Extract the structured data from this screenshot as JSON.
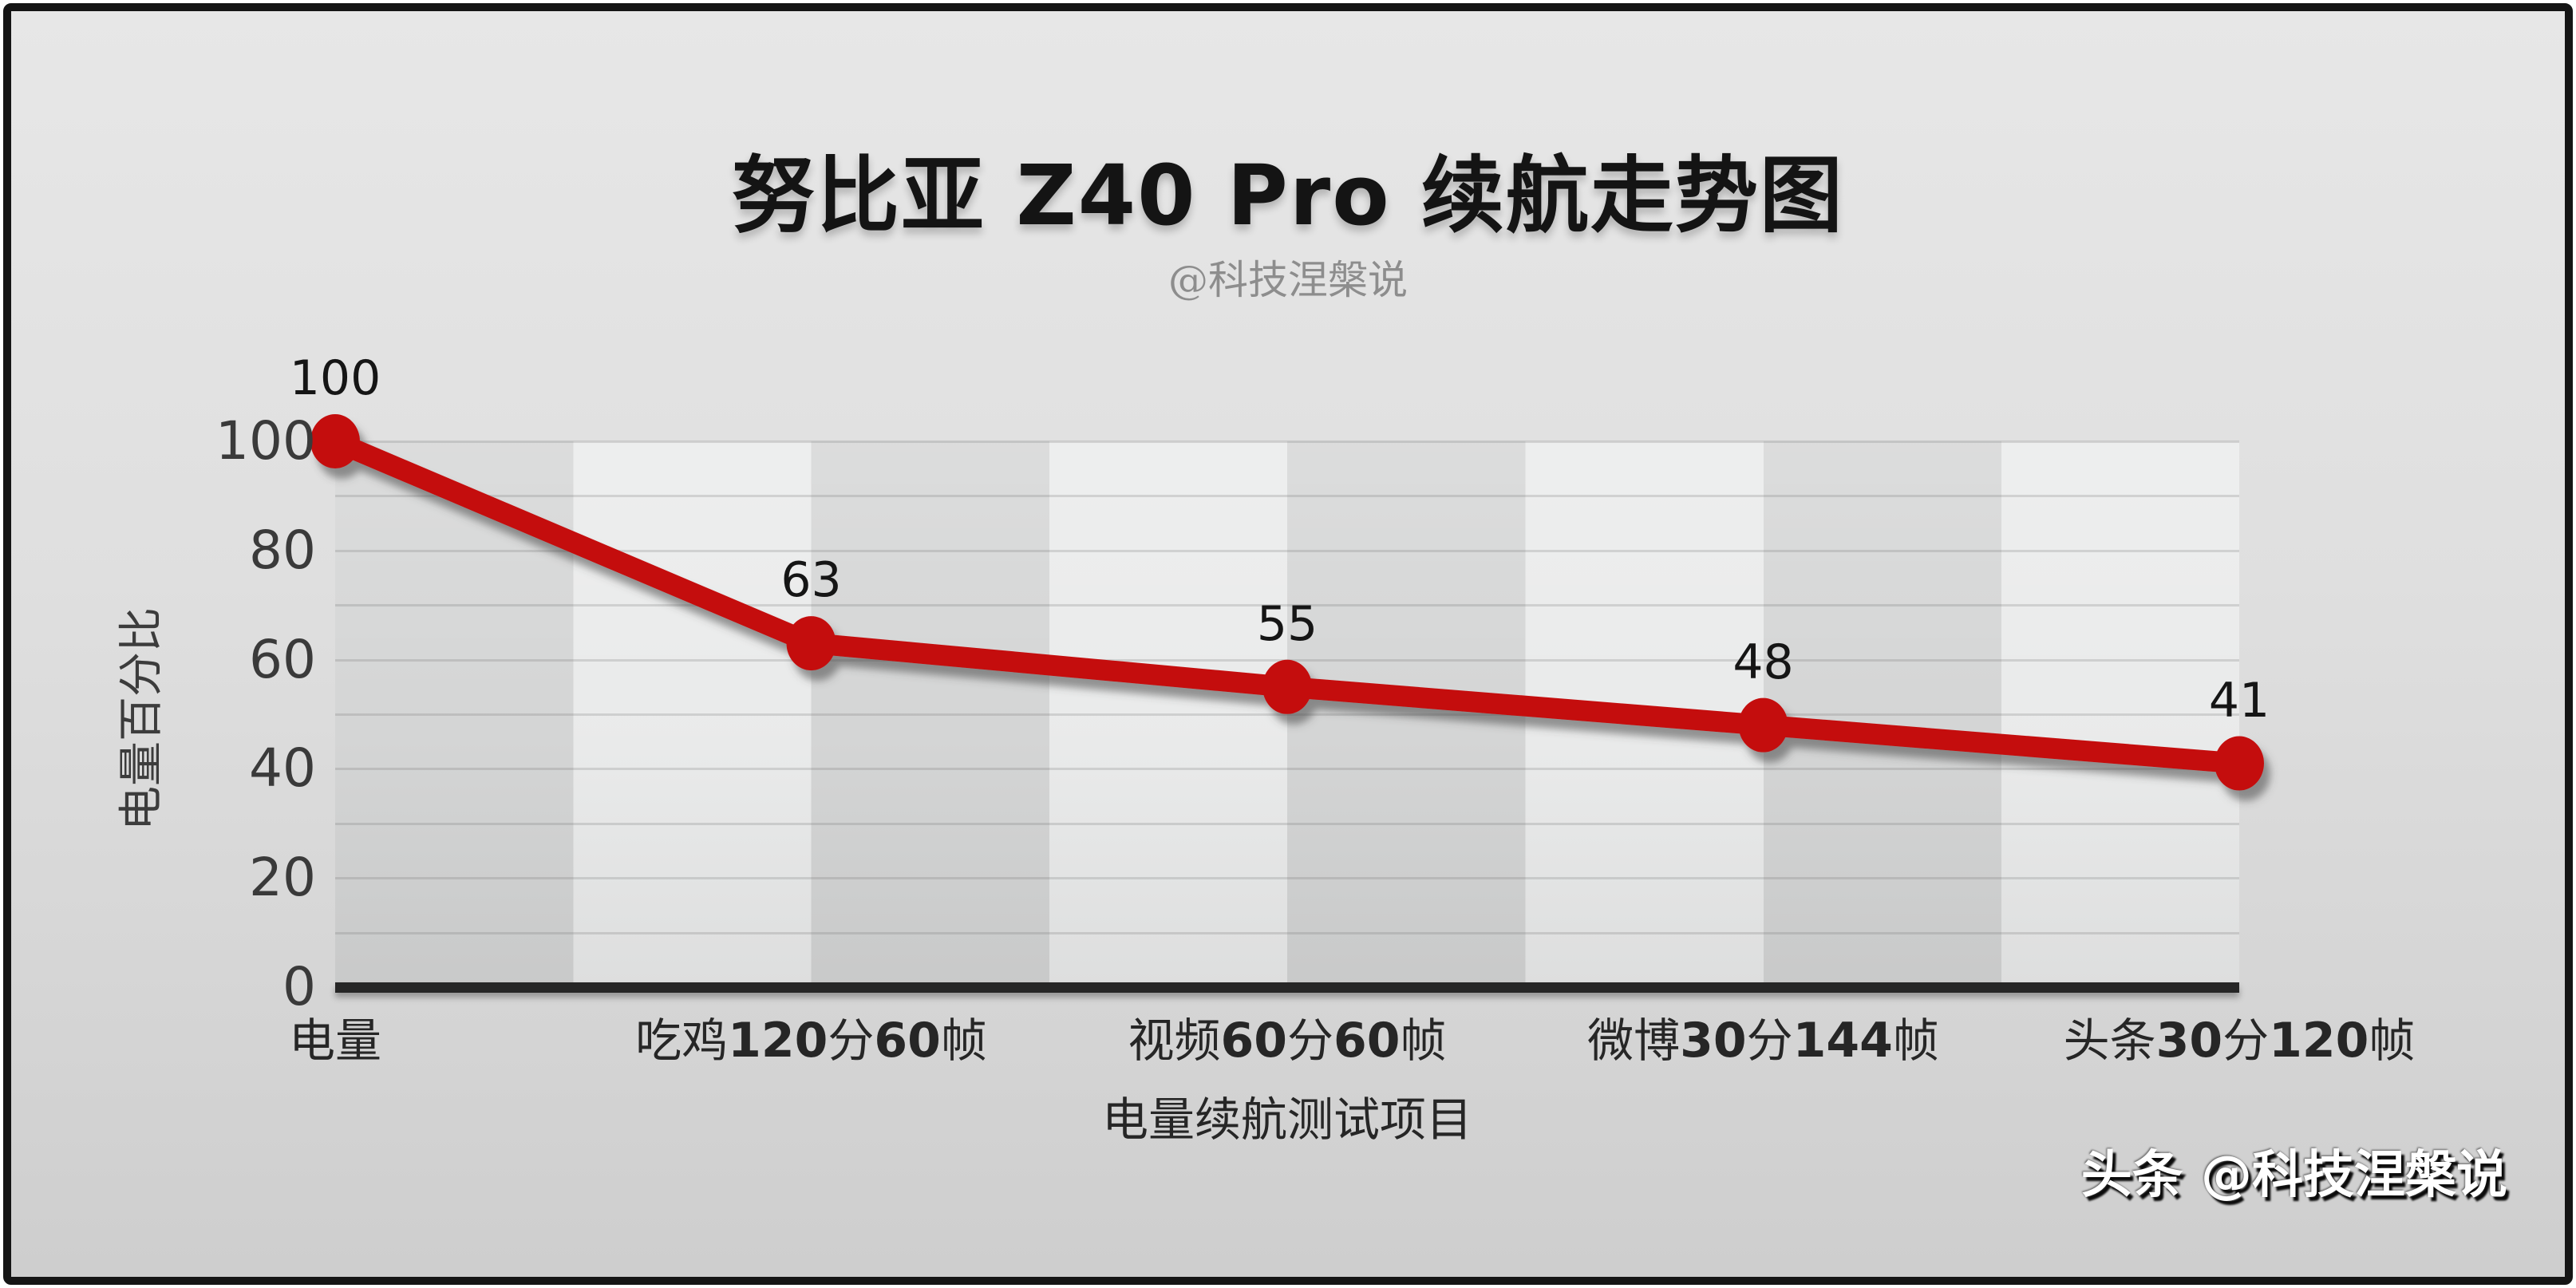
{
  "chart_data": {
    "type": "line",
    "title": "努比亚 Z40 Pro 续航走势图",
    "subtitle": "@科技涅槃说",
    "categories": [
      "电量",
      "吃鸡120分60帧",
      "视频60分60帧",
      "微博30分144帧",
      "头条30分120帧"
    ],
    "values": [
      100,
      63,
      55,
      48,
      41
    ],
    "data_labels": [
      "100",
      "63",
      "55",
      "48",
      "41"
    ],
    "xlabel": "电量续航测试项目",
    "ylabel": "电量百分比",
    "ylim": [
      0,
      100
    ],
    "yticks": [
      0,
      20,
      40,
      60,
      80,
      100
    ],
    "minor_grid_step": 10,
    "grid": "horizontal",
    "legend": "none",
    "line_color": "#c40d0d",
    "marker_color": "#c40d0d",
    "background_band_dark": "#d3d4d4",
    "background_band_light": "#e9eaea",
    "axis_line_color": "#262626",
    "watermark": "头条 @科技涅槃说"
  }
}
